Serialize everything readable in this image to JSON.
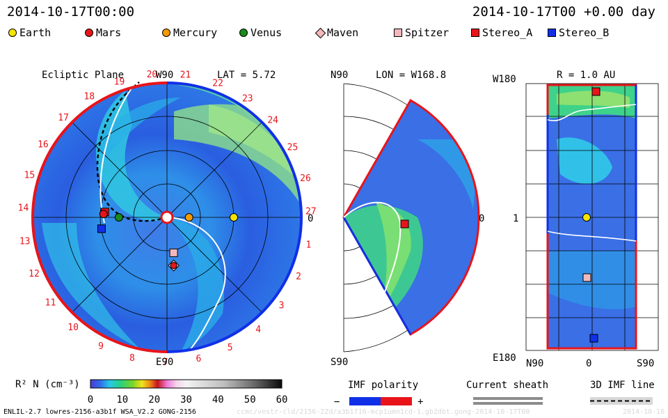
{
  "header": {
    "datetime": "2014-10-17T00:00",
    "forecast": "2014-10-17T00 +0.00 day"
  },
  "legend": [
    {
      "label": "Earth",
      "color": "#f5e400",
      "shape": "circle"
    },
    {
      "label": "Mars",
      "color": "#e8141a",
      "shape": "circle"
    },
    {
      "label": "Mercury",
      "color": "#f59a00",
      "shape": "circle"
    },
    {
      "label": "Venus",
      "color": "#1a8a1a",
      "shape": "circle"
    },
    {
      "label": "Maven",
      "color": "#f4b8bc",
      "shape": "diamond"
    },
    {
      "label": "Spitzer",
      "color": "#f4b8bc",
      "shape": "square"
    },
    {
      "label": "Stereo_A",
      "color": "#e8141a",
      "shape": "square"
    },
    {
      "label": "Stereo_B",
      "color": "#1030e8",
      "shape": "square"
    }
  ],
  "chart_data": [
    {
      "type": "heatmap",
      "panel": "ecliptic",
      "title": "Ecliptic Plane",
      "lat_label": "LAT = 5.72",
      "top_label": "W90",
      "bottom_label": "E90",
      "right_label": "0",
      "carrington_labels": [
        "20",
        "21",
        "22",
        "23",
        "24",
        "25",
        "26",
        "27",
        "1",
        "2",
        "3",
        "4",
        "5",
        "6",
        "7",
        "8",
        "9",
        "10",
        "11",
        "12",
        "13",
        "14",
        "15",
        "16",
        "17",
        "18",
        "19"
      ],
      "positions_au": {
        "Earth": [
          1.0,
          0.0
        ],
        "Mercury": [
          0.33,
          0.0
        ],
        "Venus": [
          -0.72,
          0.0
        ],
        "Mars": [
          -0.95,
          0.05
        ],
        "Spitzer": [
          0.1,
          -0.53
        ],
        "Maven": [
          0.1,
          -0.72
        ],
        "Stereo_A": [
          -0.93,
          0.08
        ],
        "Stereo_B": [
          -0.98,
          -0.17
        ]
      }
    },
    {
      "type": "heatmap",
      "panel": "meridional",
      "lon_label": "LON = W168.8",
      "top_label": "N90",
      "bottom_label": "S90",
      "right_label": "0"
    },
    {
      "type": "heatmap",
      "panel": "radial",
      "title": "R = 1.0 AU",
      "y_labels": [
        "W180",
        "1",
        "E180"
      ],
      "x_labels": [
        "N90",
        "0",
        "S90"
      ]
    }
  ],
  "colorbar": {
    "label": "R² N (cm⁻³)",
    "ticks": [
      "0",
      "10",
      "20",
      "30",
      "40",
      "50",
      "60"
    ],
    "range": [
      0,
      60
    ]
  },
  "keys": {
    "imf_title": "IMF polarity",
    "imf_minus": "−",
    "imf_plus": "+",
    "sheath_title": "Current sheath",
    "imf3d_title": "3D IMF line"
  },
  "footer": {
    "model": "ENLIL-2.7 lowres-2156-a3b1f WSA_V2.2 GONG-2156",
    "run_id": "ccmc/vestr-cld/2156-2Zd/a3b1f16-mcp1umn1cd-1.gb2dbt.gong-2014-10-17T00",
    "date_tail": "2014-10-16"
  }
}
